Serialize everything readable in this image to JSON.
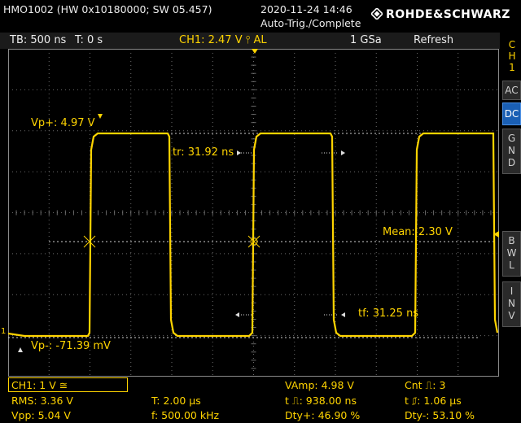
{
  "header": {
    "model_info": "HMO1002 (HW 0x10180000; SW 05.457)",
    "datetime": "2020-11-24 14:46",
    "trigger_state": "Auto-Trig./Complete",
    "brand": "ROHDE&SCHWARZ"
  },
  "status": {
    "timebase": "TB: 500 ns",
    "trigger_time": "T: 0 s",
    "trigger_level": "CH1: 2.47 V ⫯ AL",
    "sample_rate": "1 GSa",
    "mode": "Refresh"
  },
  "side_menu": {
    "channel": [
      "C",
      "H",
      "1"
    ],
    "ac": "AC",
    "dc": "DC",
    "gnd": [
      "G",
      "N",
      "D"
    ],
    "bwl": [
      "B",
      "W",
      "L"
    ],
    "inv": [
      "I",
      "N",
      "V"
    ]
  },
  "screen_labels": {
    "vp_plus": "Vp+: 4.97 V",
    "vp_minus": "Vp-: -71.39 mV",
    "rise_time": "tr: 31.92 ns",
    "fall_time": "tf: 31.25 ns",
    "mean": "Mean: 2.30 V",
    "ground_marker": "1"
  },
  "bottom": {
    "channel_scale": "CH1: 1 V ≅",
    "rms": "RMS: 3.36 V",
    "vpp": "Vpp: 5.04 V",
    "period": "T: 2.00 µs",
    "frequency": "f: 500.00 kHz",
    "vamp": "VAmp: 4.98 V",
    "pos_width": "t ⎍: 938.00 ns",
    "pos_duty": "Dty+: 46.90 %",
    "count": "Cnt ⎍: 3",
    "neg_width": "t ⎎: 1.06 µs",
    "neg_duty": "Dty-: 53.10 %"
  },
  "colors": {
    "trace": "#ffd400",
    "grid": "#6a6a6a",
    "active_button": "#1a5fb4"
  }
}
